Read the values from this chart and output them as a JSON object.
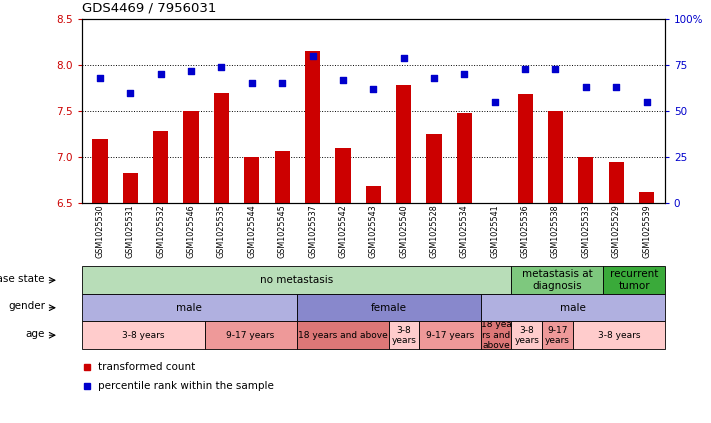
{
  "title": "GDS4469 / 7956031",
  "samples": [
    "GSM1025530",
    "GSM1025531",
    "GSM1025532",
    "GSM1025546",
    "GSM1025535",
    "GSM1025544",
    "GSM1025545",
    "GSM1025537",
    "GSM1025542",
    "GSM1025543",
    "GSM1025540",
    "GSM1025528",
    "GSM1025534",
    "GSM1025541",
    "GSM1025536",
    "GSM1025538",
    "GSM1025533",
    "GSM1025529",
    "GSM1025539"
  ],
  "bar_values": [
    7.2,
    6.83,
    7.28,
    7.5,
    7.7,
    7.0,
    7.07,
    8.15,
    7.1,
    6.68,
    7.78,
    7.25,
    7.48,
    6.5,
    7.68,
    7.5,
    7.0,
    6.95,
    6.62
  ],
  "dot_values": [
    68,
    60,
    70,
    72,
    74,
    65,
    65,
    80,
    67,
    62,
    79,
    68,
    70,
    55,
    73,
    73,
    63,
    63,
    55
  ],
  "ylim_left": [
    6.5,
    8.5
  ],
  "ylim_right": [
    0,
    100
  ],
  "yticks_left": [
    6.5,
    7.0,
    7.5,
    8.0,
    8.5
  ],
  "yticks_right": [
    0,
    25,
    50,
    75,
    100
  ],
  "ytick_labels_right": [
    "0",
    "25",
    "50",
    "75",
    "100%"
  ],
  "bar_color": "#cc0000",
  "dot_color": "#0000cc",
  "bar_width": 0.5,
  "disease_state_rows": [
    {
      "label": "no metastasis",
      "start": 0,
      "end": 14,
      "color": "#b8ddb8"
    },
    {
      "label": "metastasis at\ndiagnosis",
      "start": 14,
      "end": 17,
      "color": "#7ec87e"
    },
    {
      "label": "recurrent\ntumor",
      "start": 17,
      "end": 19,
      "color": "#3aaa3a"
    }
  ],
  "gender_rows": [
    {
      "label": "male",
      "start": 0,
      "end": 7,
      "color": "#b0b0e0"
    },
    {
      "label": "female",
      "start": 7,
      "end": 13,
      "color": "#8888cc"
    },
    {
      "label": "male",
      "start": 13,
      "end": 19,
      "color": "#b0b0e0"
    }
  ],
  "age_rows": [
    {
      "label": "3-8 years",
      "start": 0,
      "end": 4,
      "color": "#ffcccc"
    },
    {
      "label": "9-17 years",
      "start": 4,
      "end": 7,
      "color": "#ee9999"
    },
    {
      "label": "18 years and above",
      "start": 7,
      "end": 10,
      "color": "#dd7777"
    },
    {
      "label": "3-8\nyears",
      "start": 10,
      "end": 11,
      "color": "#ffcccc"
    },
    {
      "label": "9-17 years",
      "start": 11,
      "end": 13,
      "color": "#ee9999"
    },
    {
      "label": "18 yea\nrs and\nabove",
      "start": 13,
      "end": 14,
      "color": "#dd7777"
    },
    {
      "label": "3-8\nyears",
      "start": 14,
      "end": 15,
      "color": "#ffcccc"
    },
    {
      "label": "9-17\nyears",
      "start": 15,
      "end": 16,
      "color": "#ee9999"
    },
    {
      "label": "3-8 years",
      "start": 16,
      "end": 19,
      "color": "#ffcccc"
    }
  ],
  "row_labels": [
    "disease state",
    "gender",
    "age"
  ],
  "legend_items": [
    {
      "label": "transformed count",
      "color": "#cc0000"
    },
    {
      "label": "percentile rank within the sample",
      "color": "#0000cc"
    }
  ]
}
